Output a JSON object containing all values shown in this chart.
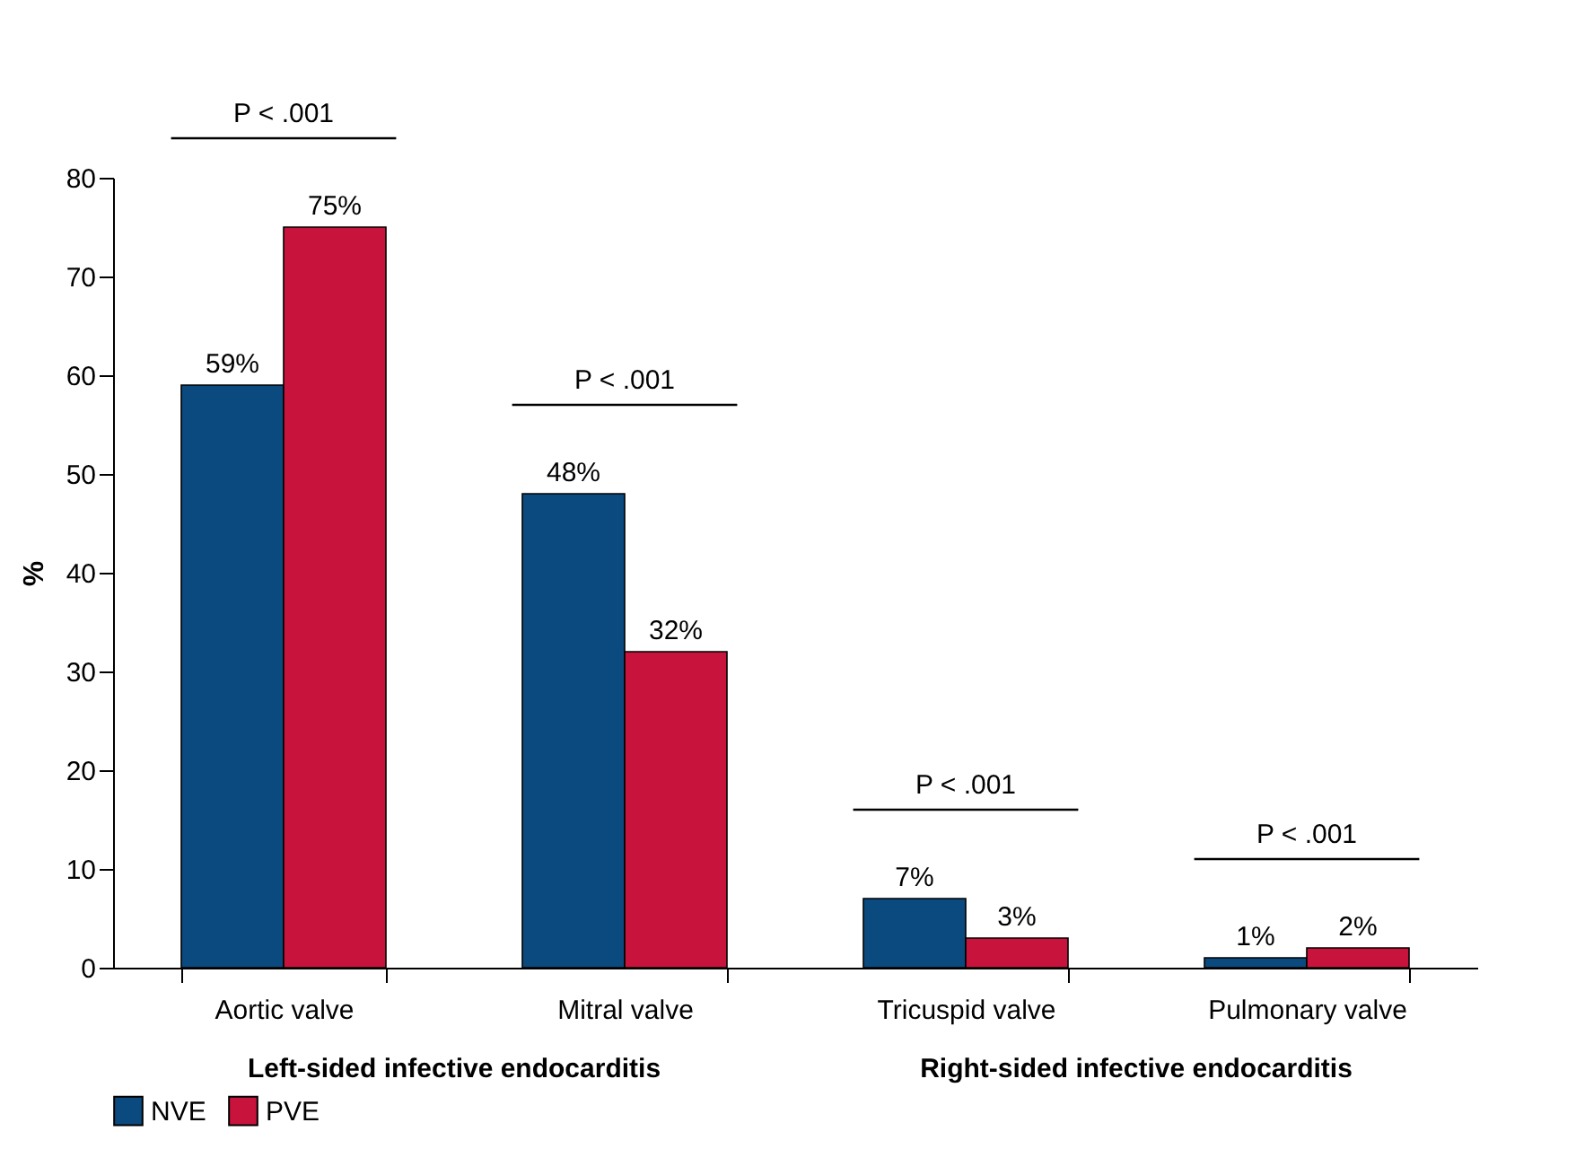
{
  "chart_data": {
    "type": "bar",
    "ylabel": "%",
    "categories": [
      "Aortic valve",
      "Mitral valve",
      "Tricuspid valve",
      "Pulmonary valve"
    ],
    "series": [
      {
        "name": "NVE",
        "color": "#0b4a7e",
        "values": [
          59,
          48,
          7,
          1
        ],
        "value_labels": [
          "59%",
          "48%",
          "7%",
          "1%"
        ]
      },
      {
        "name": "PVE",
        "color": "#c8143c",
        "values": [
          75,
          32,
          3,
          2
        ],
        "value_labels": [
          "75%",
          "32%",
          "3%",
          "2%"
        ]
      }
    ],
    "ylim": [
      0,
      80
    ],
    "yticks": [
      0,
      10,
      20,
      30,
      40,
      50,
      60,
      70,
      80
    ],
    "grid": false,
    "legend": "bottom",
    "annotations": [
      "P < .001",
      "P < .001",
      "P < .001",
      "P < .001",
      "Left-sided infective endocarditis",
      "Right-sided infective endocarditis"
    ]
  }
}
